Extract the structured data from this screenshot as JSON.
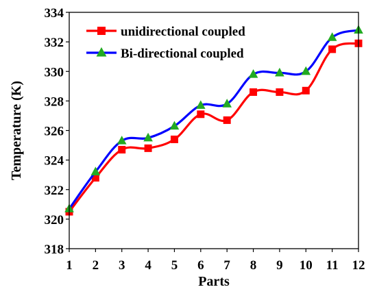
{
  "chart_data": {
    "type": "line",
    "xlabel": "Parts",
    "ylabel": "Temperature (K)",
    "x": [
      1,
      2,
      3,
      4,
      5,
      6,
      7,
      8,
      9,
      10,
      11,
      12
    ],
    "xlim": [
      1,
      12
    ],
    "ylim": [
      318,
      334
    ],
    "yticks": [
      318,
      320,
      322,
      324,
      326,
      328,
      330,
      332,
      334
    ],
    "grid": false,
    "legend_position": "top-left",
    "series": [
      {
        "name": "unidirectional coupled",
        "color": "#ff0000",
        "marker": "square",
        "marker_color": "#ff0000",
        "values": [
          320.5,
          322.8,
          324.7,
          324.8,
          325.4,
          327.1,
          326.7,
          328.6,
          328.6,
          328.7,
          331.5,
          331.9
        ]
      },
      {
        "name": "Bi-directional coupled",
        "color": "#0000ff",
        "marker": "triangle",
        "marker_color": "#22aa22",
        "values": [
          320.7,
          323.2,
          325.3,
          325.5,
          326.3,
          327.7,
          327.8,
          329.8,
          329.9,
          330.0,
          332.3,
          332.8
        ]
      }
    ]
  }
}
